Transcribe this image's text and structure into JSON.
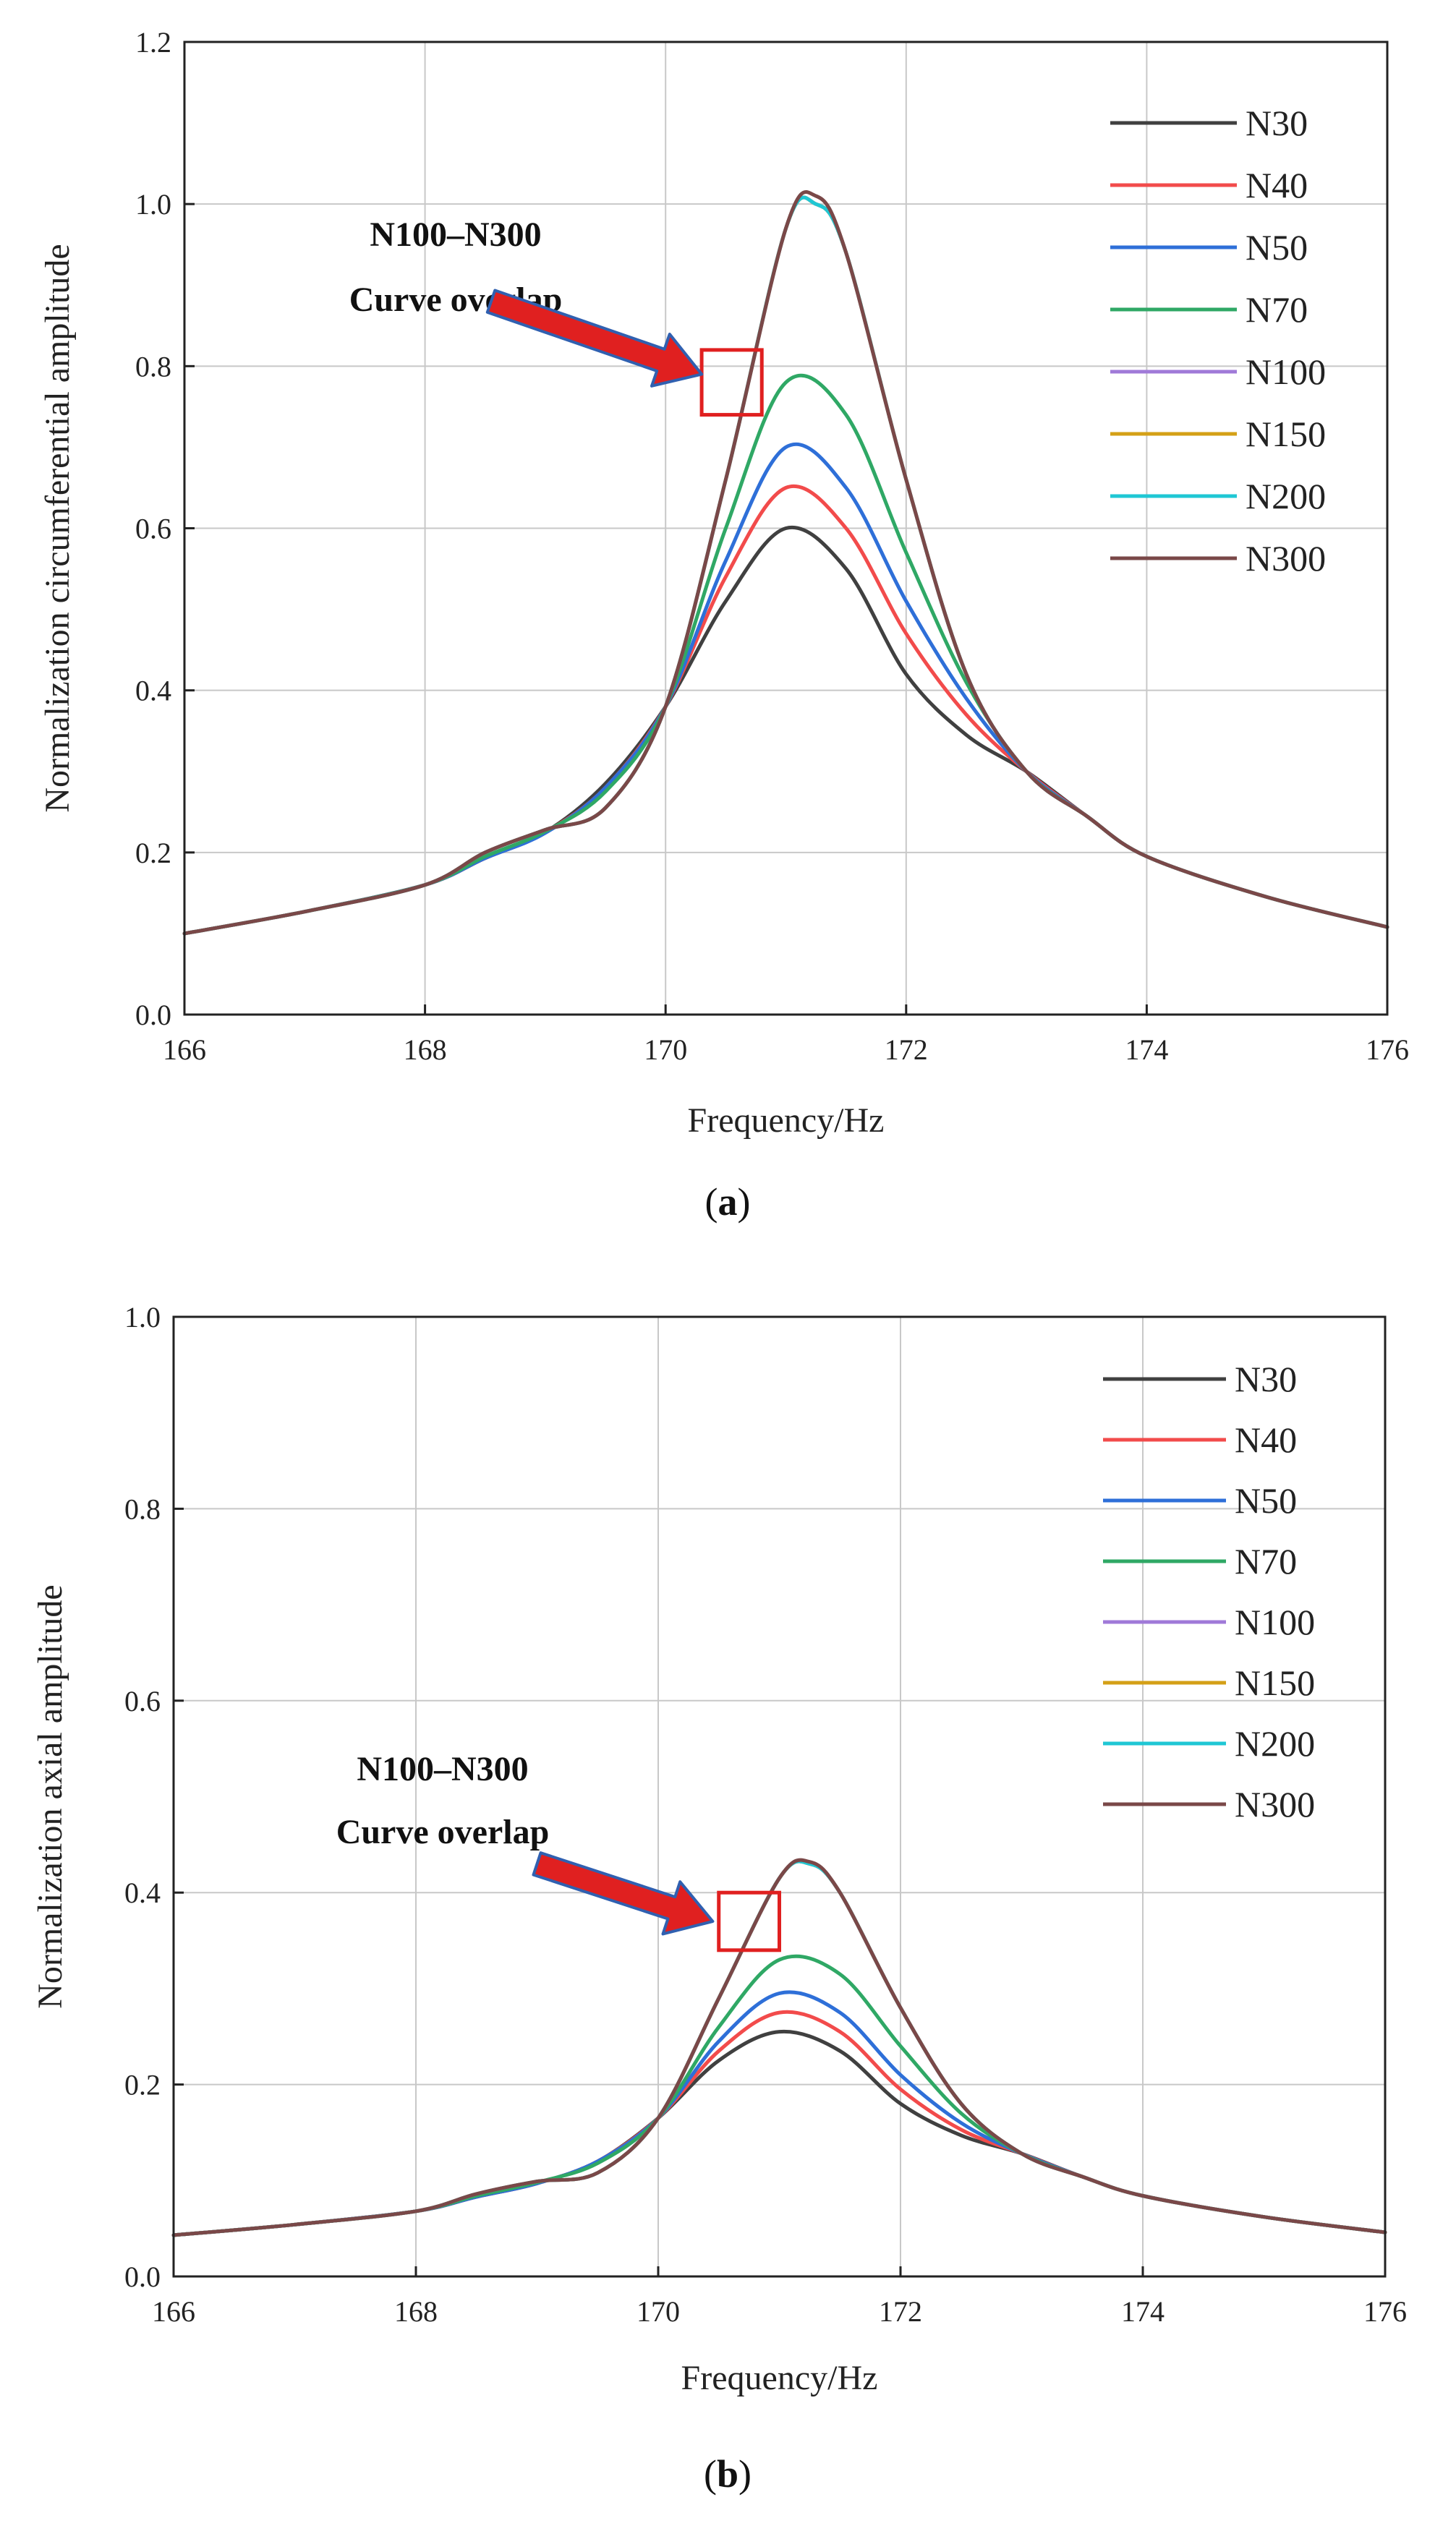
{
  "colors": {
    "N30": "#404040",
    "N40": "#f24b4b",
    "N50": "#2e6fd8",
    "N70": "#2fa865",
    "N100": "#a07ad8",
    "N150": "#d4a017",
    "N200": "#1fc7d4",
    "N300": "#7a4848",
    "grid": "#c8c8c8",
    "annotation_box": "#e02020",
    "arrow_fill": "#e02020",
    "arrow_outline": "#3060b0"
  },
  "chart_data": [
    {
      "panel": "a",
      "panel_label": "a",
      "type": "line",
      "xlabel": "Frequency/Hz",
      "ylabel": "Normalization circumferential amplitude",
      "xlim": [
        166,
        176
      ],
      "ylim": [
        0.0,
        1.2
      ],
      "xticks": [
        "166",
        "168",
        "170",
        "172",
        "174",
        "176"
      ],
      "yticks": [
        "0.0",
        "0.2",
        "0.4",
        "0.6",
        "0.8",
        "1.0",
        "1.2"
      ],
      "grid": true,
      "legend_position": "top-right",
      "annotation": {
        "lines": [
          "N100–N300",
          "Curve overlap"
        ],
        "box": {
          "x": [
            170.3,
            170.8
          ],
          "y": [
            0.74,
            0.82
          ]
        },
        "arrow_from": [
          168.55,
          0.88
        ],
        "arrow_to": [
          170.3,
          0.79
        ]
      },
      "series": [
        {
          "name": "N30",
          "x": [
            166,
            167,
            168,
            168.5,
            169,
            169.5,
            170,
            170.5,
            171,
            171.5,
            172,
            172.5,
            173,
            173.5,
            174,
            175,
            176
          ],
          "y": [
            0.1,
            0.127,
            0.16,
            0.193,
            0.225,
            0.285,
            0.38,
            0.51,
            0.6,
            0.55,
            0.42,
            0.345,
            0.3,
            0.245,
            0.195,
            0.145,
            0.108
          ]
        },
        {
          "name": "N40",
          "x": [
            166,
            167,
            168,
            168.5,
            169,
            169.5,
            170,
            170.5,
            171,
            171.5,
            172,
            172.5,
            173,
            173.5,
            174,
            175,
            176
          ],
          "y": [
            0.1,
            0.127,
            0.16,
            0.193,
            0.225,
            0.28,
            0.38,
            0.54,
            0.65,
            0.6,
            0.47,
            0.37,
            0.3,
            0.245,
            0.195,
            0.145,
            0.108
          ]
        },
        {
          "name": "N50",
          "x": [
            166,
            167,
            168,
            168.5,
            169,
            169.5,
            170,
            170.5,
            171,
            171.5,
            172,
            172.5,
            173,
            173.5,
            174,
            175,
            176
          ],
          "y": [
            0.1,
            0.127,
            0.16,
            0.193,
            0.224,
            0.28,
            0.38,
            0.56,
            0.7,
            0.65,
            0.51,
            0.39,
            0.3,
            0.245,
            0.195,
            0.145,
            0.108
          ]
        },
        {
          "name": "N70",
          "x": [
            166,
            167,
            168,
            168.5,
            169,
            169.5,
            170,
            170.5,
            171,
            171.5,
            172,
            172.5,
            173,
            173.5,
            174,
            175,
            176
          ],
          "y": [
            0.1,
            0.127,
            0.16,
            0.195,
            0.226,
            0.275,
            0.38,
            0.6,
            0.78,
            0.74,
            0.57,
            0.41,
            0.3,
            0.245,
            0.195,
            0.145,
            0.108
          ]
        },
        {
          "name": "N100",
          "x": [
            166,
            167,
            168,
            168.5,
            169,
            169.5,
            170,
            170.5,
            171,
            171.25,
            171.5,
            172,
            172.5,
            173,
            173.5,
            174,
            175,
            176
          ],
          "y": [
            0.1,
            0.127,
            0.16,
            0.2,
            0.228,
            0.255,
            0.38,
            0.66,
            0.97,
            1.0,
            0.94,
            0.66,
            0.42,
            0.3,
            0.245,
            0.195,
            0.145,
            0.108
          ]
        },
        {
          "name": "N150",
          "x": [
            166,
            167,
            168,
            168.5,
            169,
            169.5,
            170,
            170.5,
            171,
            171.25,
            171.5,
            172,
            172.5,
            173,
            173.5,
            174,
            175,
            176
          ],
          "y": [
            0.1,
            0.127,
            0.16,
            0.2,
            0.228,
            0.255,
            0.38,
            0.66,
            0.97,
            1.0,
            0.94,
            0.66,
            0.42,
            0.3,
            0.245,
            0.195,
            0.145,
            0.108
          ]
        },
        {
          "name": "N200",
          "x": [
            166,
            167,
            168,
            168.5,
            169,
            169.5,
            170,
            170.5,
            171,
            171.25,
            171.5,
            172,
            172.5,
            173,
            173.5,
            174,
            175,
            176
          ],
          "y": [
            0.1,
            0.127,
            0.16,
            0.2,
            0.228,
            0.255,
            0.38,
            0.66,
            0.97,
            1.0,
            0.94,
            0.66,
            0.42,
            0.3,
            0.245,
            0.195,
            0.145,
            0.108
          ]
        },
        {
          "name": "N300",
          "x": [
            166,
            167,
            168,
            168.5,
            169,
            169.5,
            170,
            170.5,
            171,
            171.25,
            171.5,
            172,
            172.5,
            173,
            173.5,
            174,
            175,
            176
          ],
          "y": [
            0.1,
            0.127,
            0.16,
            0.2,
            0.228,
            0.255,
            0.38,
            0.66,
            0.97,
            1.01,
            0.94,
            0.66,
            0.42,
            0.3,
            0.245,
            0.195,
            0.145,
            0.108
          ]
        }
      ]
    },
    {
      "panel": "b",
      "panel_label": "b",
      "type": "line",
      "xlabel": "Frequency/Hz",
      "ylabel": "Normalization axial amplitude",
      "xlim": [
        166,
        176
      ],
      "ylim": [
        0.0,
        1.0
      ],
      "xticks": [
        "166",
        "168",
        "170",
        "172",
        "174",
        "176"
      ],
      "yticks": [
        "0.0",
        "0.2",
        "0.4",
        "0.6",
        "0.8",
        "1.0"
      ],
      "grid": true,
      "legend_position": "top-right",
      "annotation": {
        "lines": [
          "N100–N300",
          "Curve overlap"
        ],
        "box": {
          "x": [
            170.5,
            171.0
          ],
          "y": [
            0.34,
            0.4
          ]
        },
        "arrow_from": [
          169.0,
          0.43
        ],
        "arrow_to": [
          170.45,
          0.37
        ]
      },
      "series": [
        {
          "name": "N30",
          "x": [
            166,
            167,
            168,
            168.5,
            169,
            169.5,
            170,
            170.5,
            171,
            171.5,
            172,
            172.5,
            173,
            173.5,
            174,
            175,
            176
          ],
          "y": [
            0.043,
            0.054,
            0.068,
            0.083,
            0.097,
            0.12,
            0.165,
            0.225,
            0.255,
            0.235,
            0.18,
            0.147,
            0.128,
            0.104,
            0.084,
            0.062,
            0.046
          ]
        },
        {
          "name": "N40",
          "x": [
            166,
            167,
            168,
            168.5,
            169,
            169.5,
            170,
            170.5,
            171,
            171.5,
            172,
            172.5,
            173,
            173.5,
            174,
            175,
            176
          ],
          "y": [
            0.043,
            0.054,
            0.068,
            0.083,
            0.097,
            0.12,
            0.165,
            0.235,
            0.275,
            0.255,
            0.195,
            0.153,
            0.128,
            0.104,
            0.084,
            0.062,
            0.046
          ]
        },
        {
          "name": "N50",
          "x": [
            166,
            167,
            168,
            168.5,
            169,
            169.5,
            170,
            170.5,
            171,
            171.5,
            172,
            172.5,
            173,
            173.5,
            174,
            175,
            176
          ],
          "y": [
            0.043,
            0.054,
            0.068,
            0.083,
            0.097,
            0.12,
            0.165,
            0.245,
            0.295,
            0.275,
            0.21,
            0.16,
            0.128,
            0.104,
            0.084,
            0.062,
            0.046
          ]
        },
        {
          "name": "N70",
          "x": [
            166,
            167,
            168,
            168.5,
            169,
            169.5,
            170,
            170.5,
            171,
            171.5,
            172,
            172.5,
            173,
            173.5,
            174,
            175,
            176
          ],
          "y": [
            0.043,
            0.054,
            0.068,
            0.084,
            0.098,
            0.118,
            0.165,
            0.26,
            0.33,
            0.315,
            0.24,
            0.17,
            0.128,
            0.104,
            0.084,
            0.062,
            0.046
          ]
        },
        {
          "name": "N100",
          "x": [
            166,
            167,
            168,
            168.5,
            169,
            169.5,
            170,
            170.5,
            171,
            171.25,
            171.5,
            172,
            172.5,
            173,
            173.5,
            174,
            175,
            176
          ],
          "y": [
            0.043,
            0.054,
            0.068,
            0.086,
            0.099,
            0.108,
            0.165,
            0.29,
            0.415,
            0.43,
            0.4,
            0.28,
            0.18,
            0.128,
            0.104,
            0.084,
            0.062,
            0.046
          ]
        },
        {
          "name": "N150",
          "x": [
            166,
            167,
            168,
            168.5,
            169,
            169.5,
            170,
            170.5,
            171,
            171.25,
            171.5,
            172,
            172.5,
            173,
            173.5,
            174,
            175,
            176
          ],
          "y": [
            0.043,
            0.054,
            0.068,
            0.086,
            0.099,
            0.108,
            0.165,
            0.29,
            0.415,
            0.43,
            0.4,
            0.28,
            0.18,
            0.128,
            0.104,
            0.084,
            0.062,
            0.046
          ]
        },
        {
          "name": "N200",
          "x": [
            166,
            167,
            168,
            168.5,
            169,
            169.5,
            170,
            170.5,
            171,
            171.25,
            171.5,
            172,
            172.5,
            173,
            173.5,
            174,
            175,
            176
          ],
          "y": [
            0.043,
            0.054,
            0.068,
            0.086,
            0.099,
            0.108,
            0.165,
            0.29,
            0.415,
            0.43,
            0.4,
            0.28,
            0.18,
            0.128,
            0.104,
            0.084,
            0.062,
            0.046
          ]
        },
        {
          "name": "N300",
          "x": [
            166,
            167,
            168,
            168.5,
            169,
            169.5,
            170,
            170.5,
            171,
            171.25,
            171.5,
            172,
            172.5,
            173,
            173.5,
            174,
            175,
            176
          ],
          "y": [
            0.043,
            0.054,
            0.068,
            0.086,
            0.099,
            0.108,
            0.165,
            0.29,
            0.415,
            0.432,
            0.4,
            0.28,
            0.18,
            0.128,
            0.104,
            0.084,
            0.062,
            0.046
          ]
        }
      ]
    }
  ]
}
